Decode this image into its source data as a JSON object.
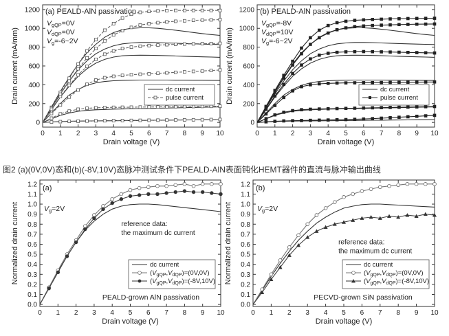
{
  "caption": "图2 (a)(0V,0V)态和(b)(-8V,10V)态脉冲测试条件下PEALD-AlN表面钝化HEMT器件的直流与脉冲输出曲线",
  "chart_data": [
    {
      "id": "top-a",
      "type": "line",
      "panel_label": "(a)",
      "title": "PEALD-AlN passivation",
      "xlabel": "Drain voltage (V)",
      "ylabel": "Drain current (mA/mm)",
      "xlim": [
        0,
        10
      ],
      "ylim": [
        -50,
        1250
      ],
      "xticks": [
        0,
        1,
        2,
        3,
        4,
        5,
        6,
        7,
        8,
        9,
        10
      ],
      "yticks": [
        0,
        200,
        400,
        600,
        800,
        1000,
        1200
      ],
      "yticklabels": [
        "0",
        "200",
        "400",
        "600",
        "800",
        "1000",
        "1200"
      ],
      "conditions": [
        "VgQP=0V",
        "VdQP=0V",
        "Vg=-6~2V"
      ],
      "legend": {
        "position": "lower-right",
        "entries": [
          {
            "label": "dc current",
            "style": "solid"
          },
          {
            "label": "pulse current",
            "style": "dashed-open"
          }
        ]
      },
      "x": [
        0,
        0.5,
        1,
        1.5,
        2,
        2.5,
        3,
        3.5,
        4,
        4.5,
        5,
        5.5,
        6,
        6.5,
        7,
        7.5,
        8,
        8.5,
        9,
        9.5,
        10
      ],
      "series": [
        {
          "style": "dc",
          "values": [
            0,
            165,
            330,
            480,
            620,
            740,
            830,
            905,
            955,
            985,
            1000,
            1005,
            1005,
            1000,
            990,
            980,
            968,
            956,
            944,
            934,
            925
          ]
        },
        {
          "style": "dc",
          "values": [
            0,
            155,
            305,
            440,
            560,
            655,
            730,
            780,
            815,
            835,
            845,
            850,
            850,
            848,
            845,
            842,
            838,
            835,
            832,
            830,
            828
          ]
        },
        {
          "style": "dc",
          "values": [
            0,
            135,
            270,
            385,
            490,
            570,
            630,
            670,
            695,
            708,
            713,
            715,
            714,
            712,
            709,
            706,
            703,
            700,
            697,
            695,
            692
          ]
        },
        {
          "style": "dc",
          "values": [
            0,
            100,
            200,
            290,
            350,
            395,
            420,
            435,
            443,
            447,
            449,
            450,
            450,
            450,
            450,
            449,
            449,
            448,
            448,
            447,
            446
          ]
        },
        {
          "style": "dc",
          "values": [
            0,
            38,
            75,
            100,
            118,
            128,
            134,
            138,
            141,
            143,
            145,
            147,
            149,
            151,
            153,
            155,
            157,
            159,
            161,
            163,
            165
          ]
        },
        {
          "style": "dc",
          "values": [
            0,
            5,
            9,
            12,
            14,
            15,
            16,
            17,
            18,
            19,
            20,
            21,
            22,
            23,
            24,
            25,
            26,
            27,
            28,
            29,
            30
          ]
        },
        {
          "style": "pulse",
          "values": [
            0,
            160,
            320,
            470,
            620,
            760,
            880,
            980,
            1050,
            1110,
            1150,
            1170,
            1180,
            1185,
            1188,
            1190,
            1190,
            1190,
            1190,
            1190,
            1190
          ]
        },
        {
          "style": "pulse",
          "values": [
            0,
            150,
            300,
            440,
            570,
            685,
            785,
            865,
            930,
            975,
            1010,
            1035,
            1050,
            1060,
            1068,
            1075,
            1080,
            1085,
            1088,
            1090,
            1092
          ]
        },
        {
          "style": "pulse",
          "values": [
            0,
            140,
            275,
            395,
            505,
            595,
            670,
            725,
            760,
            785,
            800,
            810,
            817,
            822,
            826,
            830,
            833,
            835,
            837,
            838,
            840
          ]
        },
        {
          "style": "pulse",
          "values": [
            0,
            95,
            185,
            270,
            345,
            405,
            450,
            475,
            490,
            500,
            507,
            512,
            517,
            522,
            527,
            532,
            537,
            542,
            547,
            552,
            557
          ]
        },
        {
          "style": "pulse",
          "values": [
            0,
            45,
            90,
            120,
            140,
            150,
            155,
            158,
            160,
            161,
            162,
            163,
            164,
            165,
            166,
            167,
            168,
            169,
            170,
            171,
            172
          ]
        },
        {
          "style": "pulse",
          "values": [
            0,
            4,
            8,
            11,
            13,
            15,
            17,
            18,
            19,
            20,
            21,
            22,
            23,
            24,
            25,
            26,
            27,
            28,
            29,
            30,
            31
          ]
        }
      ]
    },
    {
      "id": "top-b",
      "type": "line",
      "panel_label": "(b)",
      "title": "PEALD-AlN passivation",
      "xlabel": "Drain voltage (V)",
      "ylabel": "Drain current (mA/mm)",
      "xlim": [
        0,
        10
      ],
      "ylim": [
        -50,
        1250
      ],
      "xticks": [
        0,
        1,
        2,
        3,
        4,
        5,
        6,
        7,
        8,
        9,
        10
      ],
      "yticks": [
        0,
        200,
        400,
        600,
        800,
        1000,
        1200
      ],
      "yticklabels": [
        "0",
        "200",
        "400",
        "600",
        "800",
        "1000",
        "1200"
      ],
      "conditions": [
        "VgQP=-8V",
        "VdQP=10V",
        "Vg=-6~2V"
      ],
      "legend": {
        "position": "lower-right",
        "entries": [
          {
            "label": "dc current",
            "style": "solid"
          },
          {
            "label": "pulse current",
            "style": "dashed-filled"
          }
        ]
      },
      "x": [
        0,
        0.5,
        1,
        1.5,
        2,
        2.5,
        3,
        3.5,
        4,
        4.5,
        5,
        5.5,
        6,
        6.5,
        7,
        7.5,
        8,
        8.5,
        9,
        9.5,
        10
      ],
      "series": [
        {
          "style": "dc",
          "values": [
            0,
            165,
            330,
            480,
            620,
            740,
            830,
            905,
            955,
            985,
            1000,
            1005,
            1005,
            1000,
            990,
            980,
            968,
            956,
            944,
            934,
            925
          ]
        },
        {
          "style": "dc",
          "values": [
            0,
            155,
            305,
            440,
            560,
            655,
            730,
            780,
            815,
            835,
            845,
            850,
            850,
            848,
            845,
            842,
            838,
            835,
            832,
            830,
            828
          ]
        },
        {
          "style": "dc",
          "values": [
            0,
            135,
            270,
            385,
            490,
            570,
            630,
            670,
            695,
            708,
            713,
            715,
            714,
            712,
            709,
            706,
            703,
            700,
            697,
            695,
            692
          ]
        },
        {
          "style": "dc",
          "values": [
            0,
            100,
            200,
            290,
            350,
            395,
            420,
            435,
            443,
            447,
            449,
            450,
            450,
            450,
            450,
            449,
            449,
            448,
            448,
            447,
            446
          ]
        },
        {
          "style": "dc",
          "values": [
            0,
            38,
            75,
            100,
            118,
            128,
            134,
            138,
            141,
            143,
            145,
            147,
            149,
            151,
            153,
            155,
            157,
            159,
            161,
            163,
            165
          ]
        },
        {
          "style": "dc",
          "values": [
            0,
            5,
            9,
            12,
            14,
            15,
            16,
            17,
            18,
            19,
            20,
            21,
            22,
            23,
            24,
            25,
            26,
            27,
            28,
            29,
            30
          ]
        },
        {
          "style": "pulse",
          "values": [
            0,
            170,
            340,
            500,
            650,
            790,
            900,
            980,
            1030,
            1060,
            1075,
            1085,
            1090,
            1094,
            1097,
            1100,
            1102,
            1104,
            1105,
            1106,
            1107
          ]
        },
        {
          "style": "pulse",
          "values": [
            0,
            160,
            320,
            470,
            610,
            730,
            830,
            900,
            950,
            985,
            1005,
            1018,
            1025,
            1030,
            1034,
            1037,
            1040,
            1042,
            1044,
            1045,
            1046
          ]
        },
        {
          "style": "pulse",
          "values": [
            0,
            140,
            280,
            405,
            520,
            610,
            675,
            715,
            735,
            745,
            750,
            752,
            753,
            752,
            750,
            748,
            746,
            744,
            742,
            740,
            738
          ]
        },
        {
          "style": "pulse",
          "values": [
            0,
            90,
            180,
            265,
            335,
            380,
            400,
            410,
            415,
            418,
            420,
            421,
            422,
            423,
            424,
            425,
            426,
            427,
            428,
            429,
            430
          ]
        },
        {
          "style": "pulse",
          "values": [
            0,
            40,
            80,
            108,
            125,
            135,
            140,
            143,
            145,
            147,
            149,
            151,
            153,
            155,
            157,
            159,
            161,
            163,
            165,
            167,
            169
          ]
        },
        {
          "style": "pulse",
          "values": [
            0,
            6,
            12,
            16,
            18,
            20,
            22,
            24,
            26,
            28,
            30,
            33,
            36,
            40,
            45,
            50,
            55,
            60,
            65,
            70,
            75
          ]
        }
      ]
    },
    {
      "id": "bottom-a",
      "type": "line",
      "panel_label": "(a)",
      "xlabel": "Drain voltage (V)",
      "ylabel": "Normalized drain current",
      "xlim": [
        0,
        10
      ],
      "ylim": [
        -0.02,
        1.24
      ],
      "xticks": [
        0,
        1,
        2,
        3,
        4,
        5,
        6,
        7,
        8,
        9,
        10
      ],
      "yticks": [
        0,
        0.1,
        0.2,
        0.3,
        0.4,
        0.5,
        0.6,
        0.7,
        0.8,
        0.9,
        1.0,
        1.1,
        1.2
      ],
      "yticklabels": [
        "0.0",
        "0.1",
        "0.2",
        "0.3",
        "0.4",
        "0.5",
        "0.6",
        "0.7",
        "0.8",
        "0.9",
        "1.0",
        "1.1",
        "1.2"
      ],
      "conditions": [
        "Vg=2V"
      ],
      "annotation": [
        "reference data:",
        "the maximum dc current"
      ],
      "footer": "PEALD-grown AlN passivation",
      "legend": {
        "position": "lower-right",
        "entries": [
          {
            "label": "dc current",
            "style": "solid"
          },
          {
            "label": "(VgQP,VdQP)=(0V,0V)",
            "style": "open-circle"
          },
          {
            "label": "(VgQP,VdQP)=(-8V,10V)",
            "style": "filled-circle"
          }
        ]
      },
      "x": [
        0,
        0.5,
        1,
        1.5,
        2,
        2.5,
        3,
        3.5,
        4,
        4.5,
        5,
        5.5,
        6,
        6.5,
        7,
        7.5,
        8,
        8.5,
        9,
        9.5,
        10
      ],
      "series": [
        {
          "name": "dc current",
          "style": "dc",
          "values": [
            0,
            0.17,
            0.33,
            0.48,
            0.62,
            0.74,
            0.83,
            0.9,
            0.95,
            0.98,
            0.995,
            1.0,
            1.0,
            0.995,
            0.985,
            0.975,
            0.965,
            0.955,
            0.945,
            0.935,
            0.925
          ]
        },
        {
          "name": "(VgQP,VdQP)=(0V,0V)",
          "style": "open",
          "values": [
            0,
            0.17,
            0.34,
            0.5,
            0.64,
            0.78,
            0.89,
            0.98,
            1.05,
            1.1,
            1.14,
            1.16,
            1.17,
            1.18,
            1.18,
            1.19,
            1.2,
            1.18,
            1.2,
            1.2,
            1.2
          ]
        },
        {
          "name": "(VgQP,VdQP)=(-8V,10V)",
          "style": "filled",
          "values": [
            0,
            0.16,
            0.32,
            0.48,
            0.62,
            0.75,
            0.86,
            0.95,
            1.01,
            1.05,
            1.08,
            1.09,
            1.1,
            1.1,
            1.11,
            1.12,
            1.13,
            1.12,
            1.12,
            1.11,
            1.1
          ]
        }
      ]
    },
    {
      "id": "bottom-b",
      "type": "line",
      "panel_label": "(b)",
      "xlabel": "Drain voltage (V)",
      "ylabel": "Normalized drain current",
      "xlim": [
        0,
        10
      ],
      "ylim": [
        -0.02,
        1.24
      ],
      "xticks": [
        0,
        1,
        2,
        3,
        4,
        5,
        6,
        7,
        8,
        9,
        10
      ],
      "yticks": [
        0,
        0.1,
        0.2,
        0.3,
        0.4,
        0.5,
        0.6,
        0.7,
        0.8,
        0.9,
        1.0,
        1.1,
        1.2
      ],
      "yticklabels": [
        "0.0",
        "0.1",
        "0.2",
        "0.3",
        "0.4",
        "0.5",
        "0.6",
        "0.7",
        "0.8",
        "0.9",
        "1.0",
        "1.1",
        "1.2"
      ],
      "conditions": [
        "Vg=2V"
      ],
      "annotation": [
        "reference data:",
        "the maximum dc current"
      ],
      "footer": "PECVD-grown SiN passivation",
      "legend": {
        "position": "lower-right",
        "entries": [
          {
            "label": "dc current",
            "style": "solid"
          },
          {
            "label": "(VgQP,VdQP)=(0V,0V)",
            "style": "open-circle"
          },
          {
            "label": "(VgQP,VdQP)=(-8V,10V)",
            "style": "filled-triangle"
          }
        ]
      },
      "x": [
        0,
        0.5,
        1,
        1.5,
        2,
        2.5,
        3,
        3.5,
        4,
        4.5,
        5,
        5.5,
        6,
        6.5,
        7,
        7.5,
        8,
        8.5,
        9,
        9.5,
        10
      ],
      "series": [
        {
          "name": "dc current",
          "style": "dc",
          "values": [
            0,
            0.14,
            0.28,
            0.41,
            0.53,
            0.64,
            0.73,
            0.81,
            0.87,
            0.92,
            0.96,
            0.98,
            0.995,
            1.0,
            1.0,
            0.995,
            0.99,
            0.985,
            0.98,
            0.975,
            0.97
          ]
        },
        {
          "name": "(VgQP,VdQP)=(0V,0V)",
          "style": "open",
          "values": [
            0,
            0.15,
            0.3,
            0.44,
            0.57,
            0.69,
            0.8,
            0.89,
            0.96,
            1.02,
            1.07,
            1.1,
            1.13,
            1.15,
            1.17,
            1.18,
            1.19,
            1.2,
            1.2,
            1.2,
            1.2
          ]
        },
        {
          "name": "(VgQP,VdQP)=(-8V,10V)",
          "style": "filled-tri",
          "values": [
            0,
            0.12,
            0.25,
            0.37,
            0.49,
            0.59,
            0.67,
            0.73,
            0.77,
            0.8,
            0.82,
            0.84,
            0.86,
            0.87,
            0.86,
            0.88,
            0.87,
            0.89,
            0.88,
            0.9,
            0.89
          ]
        }
      ]
    }
  ]
}
